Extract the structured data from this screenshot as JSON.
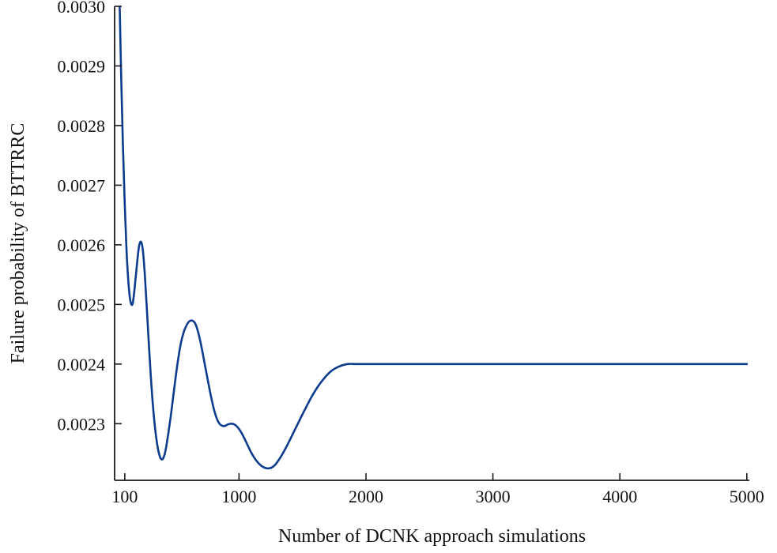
{
  "chart_data": {
    "type": "line",
    "title": "",
    "xlabel": "Number of DCNK approach simulations",
    "ylabel": "Failure probability of BTTRRC",
    "grid": false,
    "legend": null,
    "xlim": [
      20,
      5020
    ],
    "ylim": [
      0.002205,
      0.003
    ],
    "xticks": {
      "values": [
        100,
        1000,
        2000,
        3000,
        4000,
        5000
      ],
      "labels": [
        "100",
        "1000",
        "2000",
        "3000",
        "4000",
        "5000"
      ]
    },
    "yticks": {
      "values": [
        0.0023,
        0.0024,
        0.0025,
        0.0026,
        0.0027,
        0.0028,
        0.0029,
        0.003
      ],
      "labels": [
        "0.0023",
        "0.0024",
        "0.0025",
        "0.0026",
        "0.0027",
        "0.0028",
        "0.0029",
        "0.0030"
      ]
    },
    "series": [
      {
        "name": "Failure probability of BTTRRC",
        "color": "#0c3c8e",
        "line_width": 2.6,
        "points": [
          [
            60,
            0.003
          ],
          [
            72,
            0.00288
          ],
          [
            85,
            0.00277
          ],
          [
            98,
            0.00268
          ],
          [
            112,
            0.0026
          ],
          [
            126,
            0.002545
          ],
          [
            140,
            0.002512
          ],
          [
            152,
            0.0025
          ],
          [
            164,
            0.002503
          ],
          [
            178,
            0.002528
          ],
          [
            195,
            0.002565
          ],
          [
            212,
            0.002597
          ],
          [
            228,
            0.002605
          ],
          [
            243,
            0.00259
          ],
          [
            258,
            0.00255
          ],
          [
            272,
            0.0025
          ],
          [
            288,
            0.00244
          ],
          [
            305,
            0.00238
          ],
          [
            322,
            0.00233
          ],
          [
            340,
            0.00229
          ],
          [
            358,
            0.002262
          ],
          [
            375,
            0.002246
          ],
          [
            390,
            0.00224
          ],
          [
            405,
            0.002243
          ],
          [
            422,
            0.002256
          ],
          [
            442,
            0.002282
          ],
          [
            462,
            0.002312
          ],
          [
            482,
            0.002346
          ],
          [
            502,
            0.00238
          ],
          [
            522,
            0.00241
          ],
          [
            542,
            0.002435
          ],
          [
            562,
            0.002452
          ],
          [
            582,
            0.002463
          ],
          [
            605,
            0.002471
          ],
          [
            630,
            0.002473
          ],
          [
            655,
            0.002468
          ],
          [
            680,
            0.002452
          ],
          [
            705,
            0.002428
          ],
          [
            730,
            0.0024
          ],
          [
            755,
            0.002372
          ],
          [
            780,
            0.002345
          ],
          [
            805,
            0.002322
          ],
          [
            830,
            0.002306
          ],
          [
            855,
            0.002298
          ],
          [
            885,
            0.002296
          ],
          [
            915,
            0.002299
          ],
          [
            945,
            0.0023
          ],
          [
            975,
            0.002297
          ],
          [
            1010,
            0.002288
          ],
          [
            1050,
            0.002272
          ],
          [
            1095,
            0.002252
          ],
          [
            1140,
            0.002237
          ],
          [
            1185,
            0.002228
          ],
          [
            1230,
            0.002225
          ],
          [
            1275,
            0.002229
          ],
          [
            1325,
            0.002243
          ],
          [
            1380,
            0.002264
          ],
          [
            1445,
            0.002292
          ],
          [
            1515,
            0.002322
          ],
          [
            1585,
            0.00235
          ],
          [
            1655,
            0.002372
          ],
          [
            1725,
            0.002388
          ],
          [
            1790,
            0.002396
          ],
          [
            1855,
            0.0024
          ],
          [
            1930,
            0.0024
          ],
          [
            2060,
            0.0024
          ],
          [
            2250,
            0.0024
          ],
          [
            2500,
            0.0024
          ],
          [
            2800,
            0.0024
          ],
          [
            3150,
            0.0024
          ],
          [
            3500,
            0.0024
          ],
          [
            3850,
            0.0024
          ],
          [
            4200,
            0.0024
          ],
          [
            4550,
            0.0024
          ],
          [
            4800,
            0.0024
          ],
          [
            5000,
            0.0024
          ]
        ]
      }
    ]
  },
  "styles": {
    "background": "#ffffff",
    "axis_color": "#1a1a1a",
    "text_color": "#111111"
  }
}
